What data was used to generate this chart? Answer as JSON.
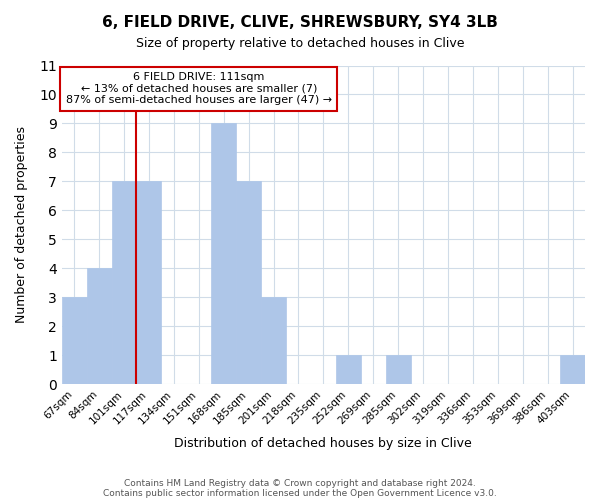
{
  "title1": "6, FIELD DRIVE, CLIVE, SHREWSBURY, SY4 3LB",
  "title2": "Size of property relative to detached houses in Clive",
  "xlabel": "Distribution of detached houses by size in Clive",
  "ylabel": "Number of detached properties",
  "bin_labels": [
    "67sqm",
    "84sqm",
    "101sqm",
    "117sqm",
    "134sqm",
    "151sqm",
    "168sqm",
    "185sqm",
    "201sqm",
    "218sqm",
    "235sqm",
    "252sqm",
    "269sqm",
    "285sqm",
    "302sqm",
    "319sqm",
    "336sqm",
    "353sqm",
    "369sqm",
    "386sqm",
    "403sqm"
  ],
  "bar_heights": [
    3,
    4,
    7,
    7,
    0,
    0,
    9,
    7,
    3,
    0,
    0,
    1,
    0,
    1,
    0,
    0,
    0,
    0,
    0,
    0,
    1
  ],
  "bar_color": "#aec6e8",
  "bar_edge_color": "#aec6e8",
  "reference_line_color": "#cc0000",
  "annotation_line1": "6 FIELD DRIVE: 111sqm",
  "annotation_line2": "← 13% of detached houses are smaller (7)",
  "annotation_line3": "87% of semi-detached houses are larger (47) →",
  "annotation_box_color": "#ffffff",
  "annotation_box_edge": "#cc0000",
  "ylim": [
    0,
    11
  ],
  "yticks": [
    0,
    1,
    2,
    3,
    4,
    5,
    6,
    7,
    8,
    9,
    10,
    11
  ],
  "footer1": "Contains HM Land Registry data © Crown copyright and database right 2024.",
  "footer2": "Contains public sector information licensed under the Open Government Licence v3.0.",
  "grid_color": "#d0dce8",
  "background_color": "#ffffff"
}
